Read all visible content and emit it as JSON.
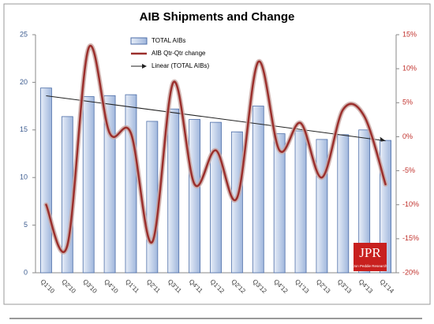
{
  "chart_data": {
    "type": "bar-line",
    "title": "AIB Shipments and Change",
    "categories": [
      "Q1'10",
      "Q2'10",
      "Q3'10",
      "Q4'10",
      "Q1'11",
      "Q2'11",
      "Q3'11",
      "Q4'11",
      "Q1'12",
      "Q2'12",
      "Q3'12",
      "Q4'12",
      "Q1'13",
      "Q2'13",
      "Q3'13",
      "Q4'13",
      "Q1'14"
    ],
    "series": [
      {
        "name": "TOTAL AIBs",
        "type": "bar",
        "color": "#b9cbe6",
        "edge": "#4d6ea8",
        "values": [
          19.4,
          16.4,
          18.5,
          18.6,
          18.7,
          15.9,
          17.2,
          16.1,
          15.8,
          14.8,
          17.5,
          14.6,
          14.9,
          14.0,
          14.5,
          15.0,
          13.9
        ]
      },
      {
        "name": "AIB Qtr-Qtr  change",
        "type": "line",
        "axis": "y2",
        "color": "#9b2f2c",
        "values": [
          -10,
          -16,
          13,
          0.5,
          0.5,
          -15.5,
          8,
          -7,
          -2,
          -9,
          11,
          -2,
          2,
          -6,
          4,
          3,
          -7
        ]
      }
    ],
    "trend": {
      "name": "Linear (TOTAL AIBs)",
      "of": 0,
      "color": "#222222"
    },
    "ylim": [
      0,
      25
    ],
    "yticks": [
      0,
      5,
      10,
      15,
      20,
      25
    ],
    "y2lim": [
      -20,
      15
    ],
    "y2ticks": [
      {
        "value": -20,
        "label": "-20%"
      },
      {
        "value": -15,
        "label": "-15%"
      },
      {
        "value": -10,
        "label": "-10%"
      },
      {
        "value": -5,
        "label": "-5%"
      },
      {
        "value": 0,
        "label": "0%"
      },
      {
        "value": 5,
        "label": "5%"
      },
      {
        "value": 10,
        "label": "10%"
      },
      {
        "value": 15,
        "label": "15%"
      }
    ],
    "grid": false,
    "logo": {
      "title": "JPR",
      "subtitle": "Jon Peddie Research"
    }
  }
}
